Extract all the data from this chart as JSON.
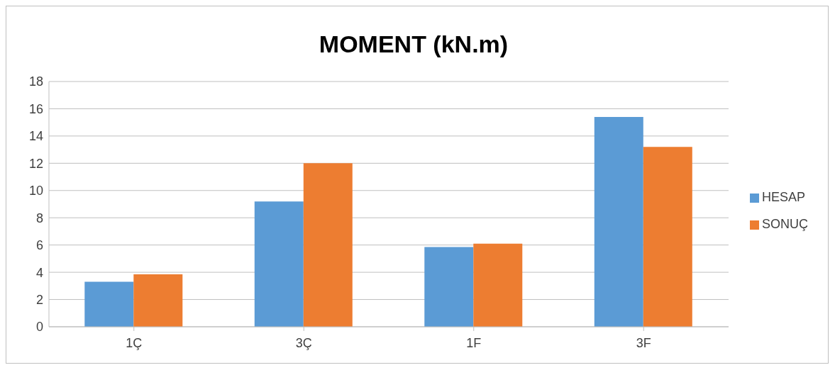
{
  "chart_data": {
    "type": "bar",
    "title": "MOMENT (kN.m)",
    "categories": [
      "1Ç",
      "3Ç",
      "1F",
      "3F"
    ],
    "series": [
      {
        "name": "HESAP",
        "color": "#5b9bd5",
        "values": [
          3.3,
          9.2,
          5.85,
          15.4
        ]
      },
      {
        "name": "SONUÇ",
        "color": "#ed7d31",
        "values": [
          3.85,
          12,
          6.1,
          13.2
        ]
      }
    ],
    "ylim": [
      0,
      18
    ],
    "yticks": [
      0,
      2,
      4,
      6,
      8,
      10,
      12,
      14,
      16,
      18
    ],
    "grid": "y",
    "legend": "right"
  }
}
